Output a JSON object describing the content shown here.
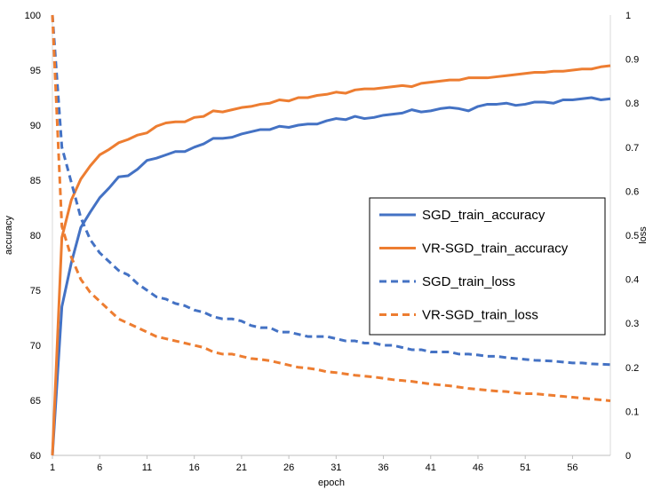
{
  "chart_data": {
    "type": "line",
    "xlabel": "epoch",
    "ylabel_left": "accuracy",
    "ylabel_right": "loss",
    "x_ticks": [
      "1",
      "6",
      "11",
      "16",
      "21",
      "26",
      "31",
      "36",
      "41",
      "46",
      "51",
      "56"
    ],
    "y_left_ticks": [
      "60",
      "65",
      "70",
      "75",
      "80",
      "85",
      "90",
      "95",
      "100"
    ],
    "y_right_ticks": [
      "0",
      "0.1",
      "0.2",
      "0.3",
      "0.4",
      "0.5",
      "0.6",
      "0.7",
      "0.8",
      "0.9",
      "1"
    ],
    "xlim": [
      1,
      60
    ],
    "ylim_left": [
      60,
      100
    ],
    "ylim_right": [
      0,
      1
    ],
    "grid": false,
    "legend_position": "center-right",
    "x": [
      1,
      2,
      3,
      4,
      5,
      6,
      7,
      8,
      9,
      10,
      11,
      12,
      13,
      14,
      15,
      16,
      17,
      18,
      19,
      20,
      21,
      22,
      23,
      24,
      25,
      26,
      27,
      28,
      29,
      30,
      31,
      32,
      33,
      34,
      35,
      36,
      37,
      38,
      39,
      40,
      41,
      42,
      43,
      44,
      45,
      46,
      47,
      48,
      49,
      50,
      51,
      52,
      53,
      54,
      55,
      56,
      57,
      58,
      59,
      60
    ],
    "series": [
      {
        "name": "SGD_train_accuracy",
        "axis": "left",
        "style": "solid",
        "color": "#4472C4",
        "values": [
          60.0,
          73.5,
          77.5,
          80.7,
          82.1,
          83.4,
          84.3,
          85.3,
          85.4,
          86.0,
          86.8,
          87.0,
          87.3,
          87.6,
          87.6,
          88.0,
          88.3,
          88.8,
          88.8,
          88.9,
          89.2,
          89.4,
          89.6,
          89.6,
          89.9,
          89.8,
          90.0,
          90.1,
          90.1,
          90.4,
          90.6,
          90.5,
          90.8,
          90.6,
          90.7,
          90.9,
          91.0,
          91.1,
          91.4,
          91.2,
          91.3,
          91.5,
          91.6,
          91.5,
          91.3,
          91.7,
          91.9,
          91.9,
          92.0,
          91.8,
          91.9,
          92.1,
          92.1,
          92.0,
          92.3,
          92.3,
          92.4,
          92.5,
          92.3,
          92.4
        ]
      },
      {
        "name": "VR-SGD_train_accuracy",
        "axis": "left",
        "style": "solid",
        "color": "#ED7D31",
        "values": [
          60.0,
          79.8,
          83.2,
          85.1,
          86.3,
          87.3,
          87.8,
          88.4,
          88.7,
          89.1,
          89.3,
          89.9,
          90.2,
          90.3,
          90.3,
          90.7,
          90.8,
          91.3,
          91.2,
          91.4,
          91.6,
          91.7,
          91.9,
          92.0,
          92.3,
          92.2,
          92.5,
          92.5,
          92.7,
          92.8,
          93.0,
          92.9,
          93.2,
          93.3,
          93.3,
          93.4,
          93.5,
          93.6,
          93.5,
          93.8,
          93.9,
          94.0,
          94.1,
          94.1,
          94.3,
          94.3,
          94.3,
          94.4,
          94.5,
          94.6,
          94.7,
          94.8,
          94.8,
          94.9,
          94.9,
          95.0,
          95.1,
          95.1,
          95.3,
          95.4
        ]
      },
      {
        "name": "SGD_train_loss",
        "axis": "right",
        "style": "dashed",
        "color": "#4472C4",
        "values": [
          1.0,
          0.7,
          0.62,
          0.54,
          0.49,
          0.46,
          0.44,
          0.42,
          0.41,
          0.39,
          0.375,
          0.36,
          0.355,
          0.345,
          0.34,
          0.33,
          0.325,
          0.315,
          0.31,
          0.31,
          0.305,
          0.295,
          0.29,
          0.29,
          0.28,
          0.28,
          0.275,
          0.27,
          0.27,
          0.27,
          0.265,
          0.26,
          0.26,
          0.255,
          0.255,
          0.25,
          0.25,
          0.245,
          0.24,
          0.24,
          0.235,
          0.235,
          0.235,
          0.23,
          0.23,
          0.228,
          0.225,
          0.225,
          0.222,
          0.22,
          0.218,
          0.216,
          0.215,
          0.214,
          0.212,
          0.21,
          0.21,
          0.208,
          0.207,
          0.206
        ]
      },
      {
        "name": "VR-SGD_train_loss",
        "axis": "right",
        "style": "dashed",
        "color": "#ED7D31",
        "values": [
          1.0,
          0.52,
          0.45,
          0.4,
          0.37,
          0.35,
          0.33,
          0.31,
          0.3,
          0.29,
          0.28,
          0.27,
          0.265,
          0.26,
          0.255,
          0.25,
          0.245,
          0.235,
          0.23,
          0.23,
          0.225,
          0.22,
          0.218,
          0.215,
          0.21,
          0.205,
          0.2,
          0.198,
          0.195,
          0.19,
          0.188,
          0.185,
          0.182,
          0.18,
          0.178,
          0.175,
          0.172,
          0.17,
          0.168,
          0.165,
          0.162,
          0.16,
          0.158,
          0.155,
          0.152,
          0.15,
          0.148,
          0.146,
          0.145,
          0.142,
          0.14,
          0.14,
          0.138,
          0.136,
          0.134,
          0.132,
          0.13,
          0.128,
          0.126,
          0.124
        ]
      }
    ]
  }
}
